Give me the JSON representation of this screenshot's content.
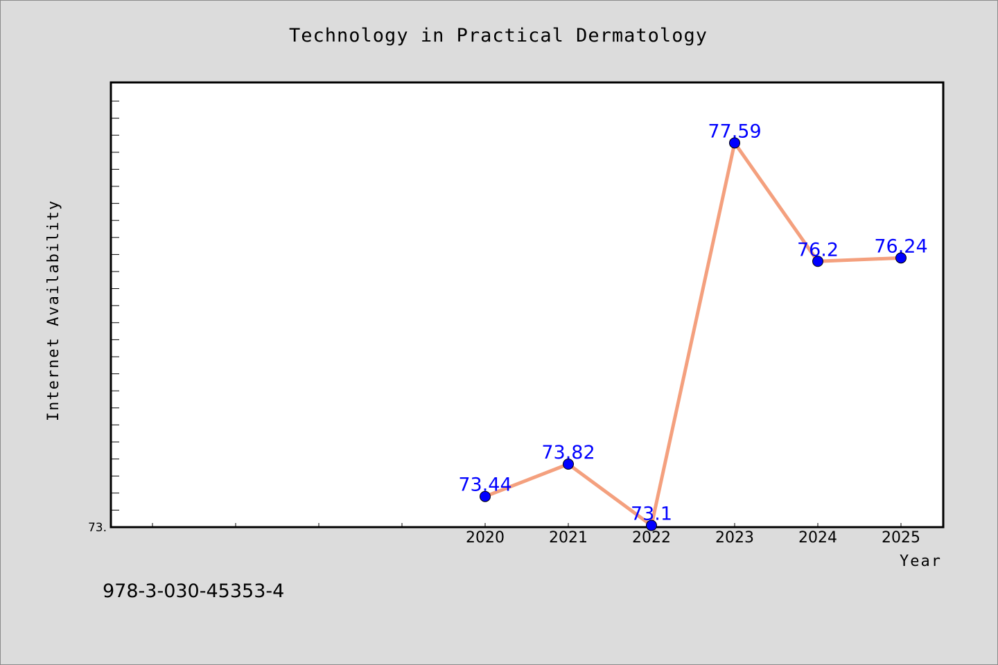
{
  "chart_data": {
    "type": "line",
    "title": "Technology in Practical Dermatology",
    "xlabel": "Year",
    "ylabel": "Internet Availability",
    "x": [
      "2020",
      "2021",
      "2022",
      "2023",
      "2024",
      "2025"
    ],
    "series": [
      {
        "values": [
          73.44,
          73.82,
          73.1,
          77.59,
          76.2,
          76.24
        ],
        "labels": [
          "73.44",
          "73.82",
          "73.1",
          "77.59",
          "76.2",
          "76.24"
        ]
      }
    ],
    "ylim_label": "73.",
    "ylim": [
      73.08,
      78.3
    ],
    "grid": false,
    "colors": {
      "line": "#f4a07e",
      "marker": "#0000ff",
      "label": "#0000ff",
      "background": "#dcdcdc",
      "plot_background": "#ffffff"
    }
  },
  "footer": {
    "isbn": "978-3-030-45353-4"
  }
}
